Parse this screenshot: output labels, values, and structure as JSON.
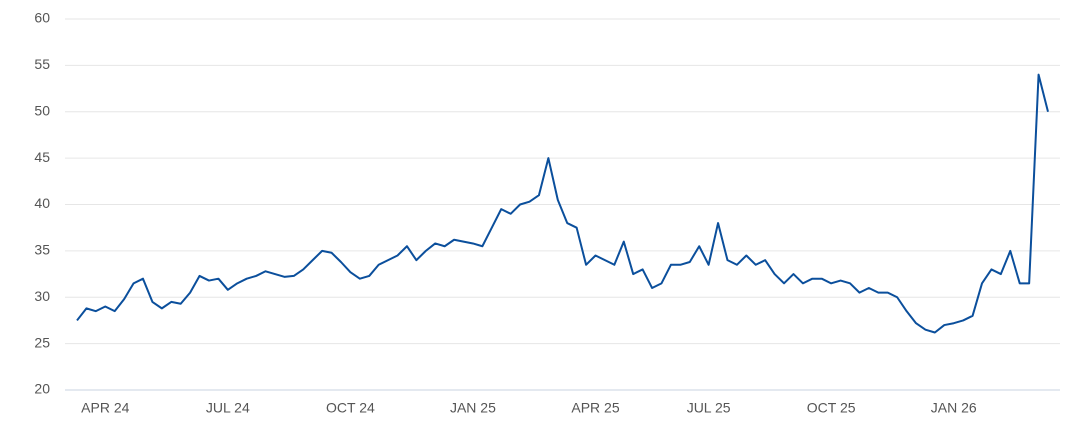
{
  "chart_data": {
    "type": "line",
    "categories": [
      null,
      null,
      null,
      "APR 24",
      null,
      null,
      null,
      null,
      null,
      null,
      null,
      null,
      null,
      null,
      null,
      null,
      "JUL 24",
      null,
      null,
      null,
      null,
      null,
      null,
      null,
      null,
      null,
      null,
      null,
      null,
      "OCT 24",
      null,
      null,
      null,
      null,
      null,
      null,
      null,
      null,
      null,
      null,
      null,
      null,
      "JAN 25",
      null,
      null,
      null,
      null,
      null,
      null,
      null,
      null,
      null,
      null,
      null,
      null,
      "APR 25",
      null,
      null,
      null,
      null,
      null,
      null,
      null,
      null,
      null,
      null,
      null,
      "JUL 25",
      null,
      null,
      null,
      null,
      null,
      null,
      null,
      null,
      null,
      null,
      null,
      null,
      "OCT 25",
      null,
      null,
      null,
      null,
      null,
      null,
      null,
      null,
      null,
      null,
      null,
      null,
      "JAN 26",
      null,
      null,
      null,
      null,
      null,
      null,
      null,
      null,
      null,
      null
    ],
    "values": [
      27.5,
      28.8,
      28.5,
      29,
      28.5,
      29.8,
      31.5,
      32,
      29.5,
      28.8,
      29.5,
      29.3,
      30.5,
      32.3,
      31.8,
      32,
      30.8,
      31.5,
      32,
      32.3,
      32.8,
      32.5,
      32.2,
      32.3,
      33,
      34,
      35,
      34.8,
      33.8,
      32.7,
      32,
      32.3,
      33.5,
      34,
      34.5,
      35.5,
      34,
      35,
      35.8,
      35.5,
      36.2,
      36,
      35.8,
      35.5,
      37.5,
      39.5,
      39,
      40,
      40.3,
      41,
      45,
      40.5,
      38,
      37.5,
      33.5,
      34.5,
      34,
      33.5,
      36,
      32.5,
      33,
      31,
      31.5,
      33.5,
      33.5,
      33.8,
      35.5,
      33.5,
      38,
      34,
      33.5,
      34.5,
      33.5,
      34,
      32.5,
      31.5,
      32.5,
      31.5,
      32,
      32,
      31.5,
      31.8,
      31.5,
      30.5,
      31,
      30.5,
      30.5,
      30,
      28.5,
      27.2,
      26.5,
      26.2,
      27,
      27.2,
      27.5,
      28,
      31.5,
      33,
      32.5,
      35,
      31.5,
      31.5,
      54,
      50
    ],
    "color": "#0b4f9c",
    "ylim": [
      20,
      60
    ],
    "yticks": [
      20,
      25,
      30,
      35,
      40,
      45,
      50,
      55,
      60
    ],
    "grid": true
  }
}
